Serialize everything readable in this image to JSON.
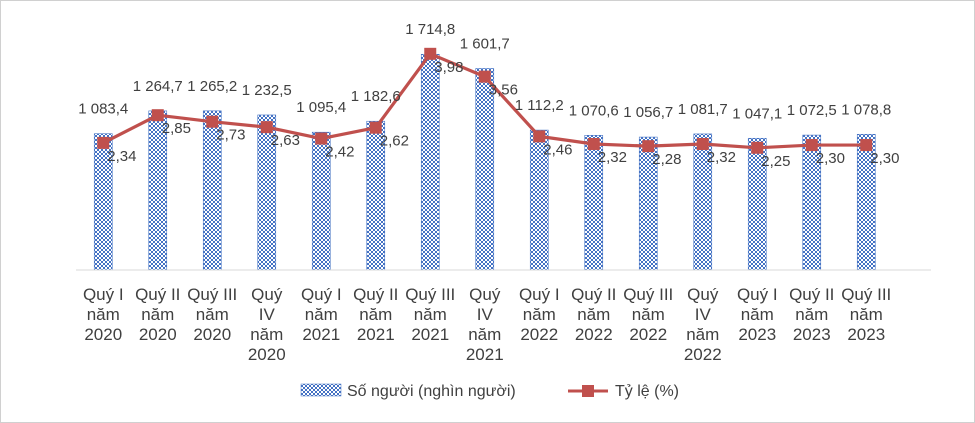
{
  "chart_data": {
    "type": "bar",
    "categories": [
      "Quý I năm 2020",
      "Quý II năm 2020",
      "Quý III năm 2020",
      "Quý IV năm 2020",
      "Quý I năm 2021",
      "Quý II năm 2021",
      "Quý III năm 2021",
      "Quý IV năm 2021",
      "Quý I năm 2022",
      "Quý II năm 2022",
      "Quý III năm 2022",
      "Quý IV năm 2022",
      "Quý I năm 2023",
      "Quý II năm 2023",
      "Quý III năm 2023"
    ],
    "category_lines": [
      [
        "Quý I",
        "năm",
        "2020"
      ],
      [
        "Quý II",
        "năm",
        "2020"
      ],
      [
        "Quý III",
        "năm",
        "2020"
      ],
      [
        "Quý",
        "IV",
        "năm",
        "2020"
      ],
      [
        "Quý I",
        "năm",
        "2021"
      ],
      [
        "Quý II",
        "năm",
        "2021"
      ],
      [
        "Quý III",
        "năm",
        "2021"
      ],
      [
        "Quý",
        "IV",
        "năm",
        "2021"
      ],
      [
        "Quý I",
        "năm",
        "2022"
      ],
      [
        "Quý II",
        "năm",
        "2022"
      ],
      [
        "Quý III",
        "năm",
        "2022"
      ],
      [
        "Quý",
        "IV",
        "năm",
        "2022"
      ],
      [
        "Quý I",
        "năm",
        "2023"
      ],
      [
        "Quý II",
        "năm",
        "2023"
      ],
      [
        "Quý III",
        "năm",
        "2023"
      ]
    ],
    "series": [
      {
        "name": "Số người (nghìn người)",
        "kind": "bar",
        "color": "#4472c4",
        "pattern": "checkerboard",
        "values": [
          1083.4,
          1264.7,
          1265.2,
          1232.5,
          1095.4,
          1182.6,
          1714.8,
          1601.7,
          1112.2,
          1070.6,
          1056.7,
          1081.7,
          1047.1,
          1072.5,
          1078.8
        ],
        "labels": [
          "1 083,4",
          "1 264,7",
          "1 265,2",
          "1 232,5",
          "1 095,4",
          "1 182,6",
          "1 714,8",
          "1 601,7",
          "1 112,2",
          "1 070,6",
          "1 056,7",
          "1 081,7",
          "1 047,1",
          "1 072,5",
          "1 078,8"
        ]
      },
      {
        "name": "Tỷ lệ (%)",
        "kind": "line",
        "marker": "square",
        "color": "#c0504d",
        "values": [
          2.34,
          2.85,
          2.73,
          2.63,
          2.42,
          2.62,
          3.98,
          3.56,
          2.46,
          2.32,
          2.28,
          2.32,
          2.25,
          2.3,
          2.3
        ],
        "labels": [
          "2,34",
          "2,85",
          "2,73",
          "2,63",
          "2,42",
          "2,62",
          "3,98",
          "3,56",
          "2,46",
          "2,32",
          "2,28",
          "2,32",
          "2,25",
          "2,30",
          "2,30"
        ]
      }
    ],
    "bar_axis_range": [
      0,
      1900
    ],
    "line_axis_range": [
      0,
      4.4
    ],
    "axes_visible": false,
    "grid": false,
    "legend_position": "bottom"
  }
}
